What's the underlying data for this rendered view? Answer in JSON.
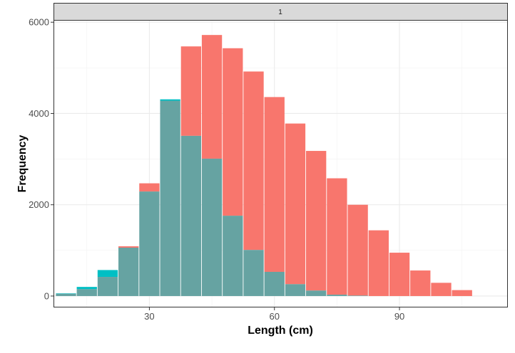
{
  "chart_data": {
    "type": "bar",
    "facet_label": "1",
    "xlabel": "Length (cm)",
    "ylabel": "Frequency",
    "xlim": [
      7,
      116
    ],
    "ylim": [
      -250,
      6050
    ],
    "x_ticks": [
      30,
      60,
      90
    ],
    "y_ticks": [
      0,
      2000,
      4000,
      6000
    ],
    "bin_width": 5,
    "grid": true,
    "x": [
      10,
      15,
      20,
      25,
      30,
      35,
      40,
      45,
      50,
      55,
      60,
      65,
      70,
      75,
      80,
      85,
      90,
      95,
      100,
      105
    ],
    "series": [
      {
        "color": "#F8766D",
        "values": [
          50,
          150,
          420,
          1090,
          2470,
          4280,
          5470,
          5720,
          5430,
          4920,
          4360,
          3780,
          3180,
          2580,
          2000,
          1440,
          950,
          560,
          290,
          130
        ]
      },
      {
        "color": "#00BFC4",
        "values": [
          60,
          200,
          570,
          1060,
          2290,
          4310,
          3510,
          3010,
          1760,
          1010,
          530,
          260,
          120,
          30,
          10,
          0,
          0,
          0,
          0,
          0
        ]
      }
    ],
    "overlap_color": "#66A3A2"
  }
}
